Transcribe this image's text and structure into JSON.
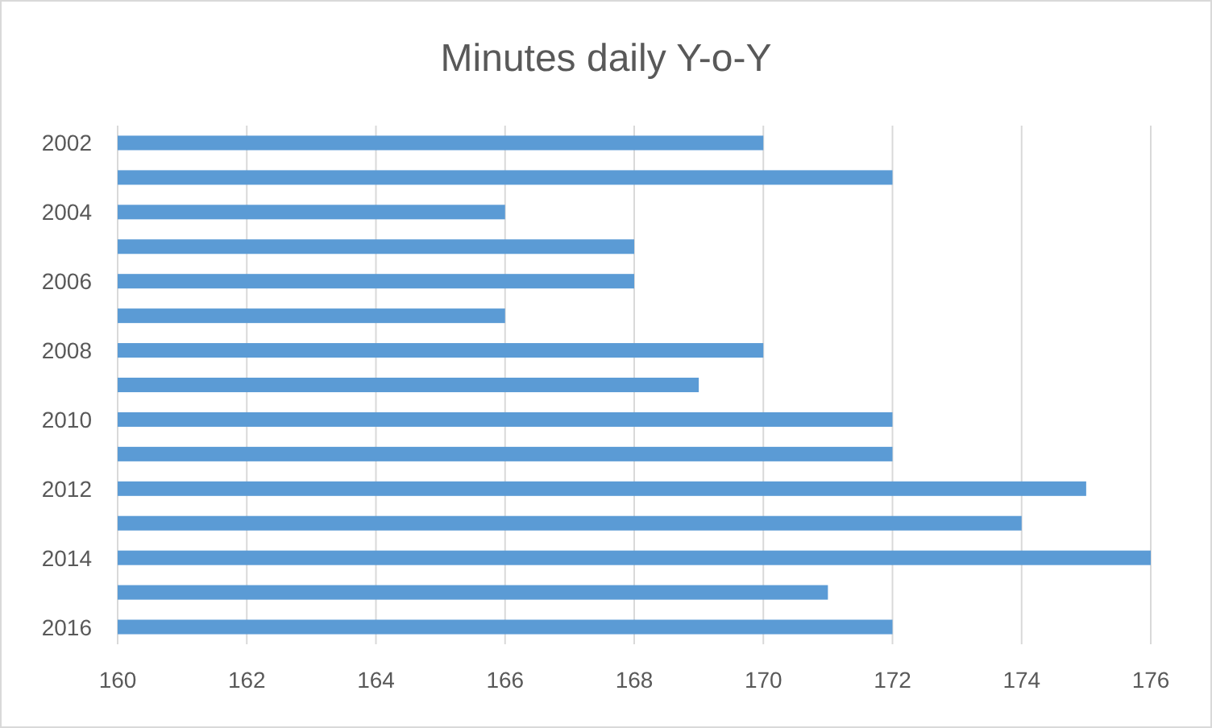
{
  "chart_data": {
    "type": "bar",
    "orientation": "horizontal",
    "title": "Minutes daily Y-o-Y",
    "categories": [
      "2002",
      null,
      "2004",
      null,
      "2006",
      null,
      "2008",
      null,
      "2010",
      null,
      "2012",
      null,
      "2014",
      null,
      "2016"
    ],
    "values": [
      170,
      172,
      166,
      168,
      168,
      166,
      170,
      169,
      172,
      172,
      175,
      174,
      176,
      171,
      172
    ],
    "color": "#5b9bd5",
    "xlim": [
      160,
      176
    ],
    "xticks": [
      160,
      162,
      164,
      166,
      168,
      170,
      172,
      174,
      176
    ],
    "grid": "x"
  }
}
